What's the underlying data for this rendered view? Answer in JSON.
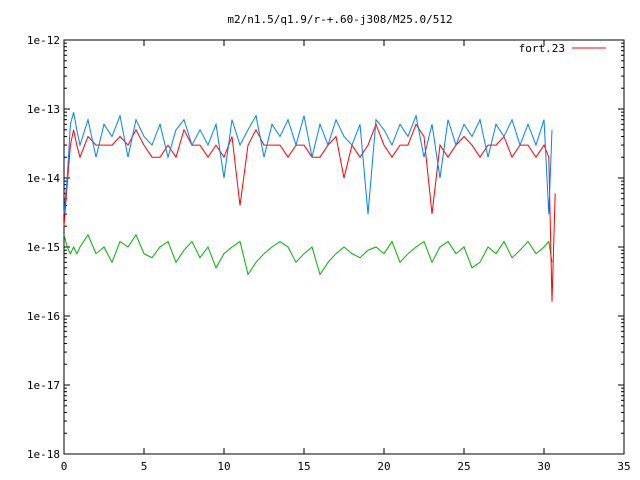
{
  "chart_data": {
    "type": "line",
    "title": "m2/n1.5/q1.9/r-+.60-j308/M25.0/512",
    "xlabel": "",
    "ylabel": "",
    "xlim": [
      0,
      35
    ],
    "ylim": [
      1e-18,
      1e-12
    ],
    "yscale": "log",
    "grid": false,
    "legend_position": "top-right",
    "x_ticks": [
      0,
      5,
      10,
      15,
      20,
      25,
      30,
      35
    ],
    "x_tick_labels": [
      "0",
      "5",
      "10",
      "15",
      "20",
      "25",
      "30",
      "35"
    ],
    "y_ticks": [
      1e-18,
      1e-17,
      1e-16,
      1e-15,
      1e-14,
      1e-13,
      1e-12
    ],
    "y_tick_labels": [
      "1e-18",
      "1e-17",
      "1e-16",
      "1e-15",
      "1e-14",
      "1e-13",
      "1e-12"
    ],
    "series": [
      {
        "name": "fort.23",
        "color": "#ff0000",
        "x": [
          0.0,
          0.2,
          0.4,
          0.6,
          0.8,
          1.0,
          1.5,
          2.0,
          2.5,
          3.0,
          3.5,
          4.0,
          4.5,
          5.0,
          5.5,
          6.0,
          6.5,
          7.0,
          7.5,
          8.0,
          8.5,
          9.0,
          9.5,
          10.0,
          10.5,
          11.0,
          11.5,
          12.0,
          12.5,
          13.0,
          13.5,
          14.0,
          14.5,
          15.0,
          15.5,
          16.0,
          16.5,
          17.0,
          17.5,
          18.0,
          18.5,
          19.0,
          19.5,
          20.0,
          20.5,
          21.0,
          21.5,
          22.0,
          22.5,
          23.0,
          23.5,
          24.0,
          24.5,
          25.0,
          25.5,
          26.0,
          26.5,
          27.0,
          27.5,
          28.0,
          28.5,
          29.0,
          29.5,
          30.0,
          30.3,
          30.5,
          30.7
        ],
        "y": [
          2e-15,
          8e-15,
          3e-14,
          5e-14,
          3e-14,
          2e-14,
          4e-14,
          3e-14,
          3e-14,
          3e-14,
          4e-14,
          3e-14,
          5e-14,
          3e-14,
          2e-14,
          2e-14,
          3e-14,
          2e-14,
          5e-14,
          3e-14,
          3e-14,
          2e-14,
          3e-14,
          2e-14,
          4e-14,
          4e-15,
          3e-14,
          5e-14,
          3e-14,
          3e-14,
          3e-14,
          2e-14,
          3e-14,
          3e-14,
          2e-14,
          2e-14,
          3e-14,
          4e-14,
          1e-14,
          3e-14,
          2e-14,
          3e-14,
          6e-14,
          3e-14,
          2e-14,
          3e-14,
          3e-14,
          6e-14,
          4e-14,
          3e-15,
          3e-14,
          2e-14,
          3e-14,
          4e-14,
          3e-14,
          2e-14,
          3e-14,
          3e-14,
          4e-14,
          2e-14,
          3e-14,
          3e-14,
          2e-14,
          3e-14,
          2e-14,
          1.6e-16,
          6e-15
        ]
      },
      {
        "name": "",
        "color": "#0080ff",
        "x": [
          0.0,
          0.2,
          0.4,
          0.6,
          0.8,
          1.0,
          1.5,
          2.0,
          2.5,
          3.0,
          3.5,
          4.0,
          4.5,
          5.0,
          5.5,
          6.0,
          6.5,
          7.0,
          7.5,
          8.0,
          8.5,
          9.0,
          9.5,
          10.0,
          10.5,
          11.0,
          11.5,
          12.0,
          12.5,
          13.0,
          13.5,
          14.0,
          14.5,
          15.0,
          15.5,
          16.0,
          16.5,
          17.0,
          17.5,
          18.0,
          18.5,
          19.0,
          19.5,
          20.0,
          20.5,
          21.0,
          21.5,
          22.0,
          22.5,
          23.0,
          23.5,
          24.0,
          24.5,
          25.0,
          25.5,
          26.0,
          26.5,
          27.0,
          27.5,
          28.0,
          28.5,
          29.0,
          29.5,
          30.0,
          30.3,
          30.5
        ],
        "y": [
          3e-15,
          1e-14,
          6e-14,
          9e-14,
          5e-14,
          3e-14,
          7e-14,
          2e-14,
          6e-14,
          4e-14,
          8e-14,
          2e-14,
          7e-14,
          4e-14,
          3e-14,
          6e-14,
          2e-14,
          5e-14,
          7e-14,
          3e-14,
          5e-14,
          3e-14,
          6e-14,
          1e-14,
          7e-14,
          3e-14,
          5e-14,
          8e-14,
          2e-14,
          6e-14,
          4e-14,
          7e-14,
          3e-14,
          8e-14,
          2e-14,
          6e-14,
          3e-14,
          7e-14,
          4e-14,
          3e-14,
          6e-14,
          3e-15,
          7e-14,
          5e-14,
          3e-14,
          6e-14,
          4e-14,
          8e-14,
          2e-14,
          6e-14,
          1e-14,
          7e-14,
          3e-14,
          6e-14,
          4e-14,
          7e-14,
          2e-14,
          6e-14,
          4e-14,
          7e-14,
          3e-14,
          6e-14,
          3e-14,
          7e-14,
          3e-15,
          5e-14
        ]
      },
      {
        "name": "",
        "color": "#00b000",
        "x": [
          0.0,
          0.2,
          0.4,
          0.6,
          0.8,
          1.0,
          1.5,
          2.0,
          2.5,
          3.0,
          3.5,
          4.0,
          4.5,
          5.0,
          5.5,
          6.0,
          6.5,
          7.0,
          7.5,
          8.0,
          8.5,
          9.0,
          9.5,
          10.0,
          10.5,
          11.0,
          11.5,
          12.0,
          12.5,
          13.0,
          13.5,
          14.0,
          14.5,
          15.0,
          15.5,
          16.0,
          16.5,
          17.0,
          17.5,
          18.0,
          18.5,
          19.0,
          19.5,
          20.0,
          20.5,
          21.0,
          21.5,
          22.0,
          22.5,
          23.0,
          23.5,
          24.0,
          24.5,
          25.0,
          25.5,
          26.0,
          26.5,
          27.0,
          27.5,
          28.0,
          28.5,
          29.0,
          29.5,
          30.0,
          30.3,
          30.5
        ],
        "y": [
          1.5e-15,
          1e-15,
          8e-16,
          1e-15,
          8e-16,
          1e-15,
          1.5e-15,
          8e-16,
          1e-15,
          6e-16,
          1.2e-15,
          1e-15,
          1.5e-15,
          8e-16,
          7e-16,
          1e-15,
          1.2e-15,
          6e-16,
          9e-16,
          1.2e-15,
          7e-16,
          1e-15,
          5e-16,
          8e-16,
          1e-15,
          1.2e-15,
          4e-16,
          6e-16,
          8e-16,
          1e-15,
          1.2e-15,
          1e-15,
          6e-16,
          8e-16,
          1e-15,
          4e-16,
          6e-16,
          8e-16,
          1e-15,
          8e-16,
          7e-16,
          9e-16,
          1e-15,
          8e-16,
          1.2e-15,
          6e-16,
          8e-16,
          1e-15,
          1.2e-15,
          6e-16,
          1e-15,
          1.2e-15,
          8e-16,
          1e-15,
          5e-16,
          6e-16,
          1e-15,
          8e-16,
          1.2e-15,
          7e-16,
          9e-16,
          1.2e-15,
          8e-16,
          1e-15,
          1.2e-15,
          6e-16
        ]
      }
    ]
  }
}
